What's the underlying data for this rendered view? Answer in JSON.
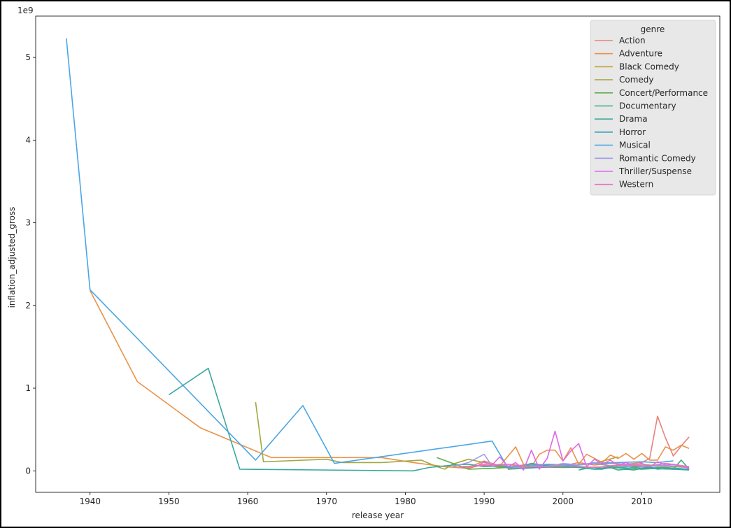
{
  "chart_data": {
    "type": "line",
    "xlabel": "release year",
    "ylabel": "inflation_adjusted_gross",
    "y_offset_label": "1e9",
    "y_scale": 1000000000,
    "xlim": [
      1933.1,
      2019.9
    ],
    "ylim": [
      -0.26,
      5.5
    ],
    "x_ticks": [
      1940,
      1950,
      1960,
      1970,
      1980,
      1990,
      2000,
      2010
    ],
    "y_ticks": [
      0,
      1,
      2,
      3,
      4,
      5
    ],
    "grid": false,
    "legend_title": "genre",
    "legend_position": "top-right",
    "series": [
      {
        "name": "Action",
        "color": "#e8827c",
        "x": [
          1985,
          1988,
          1990,
          1992,
          1994,
          1996,
          1998,
          2000,
          2002,
          2004,
          2006,
          2008,
          2010,
          2011,
          2012,
          2013,
          2014,
          2015,
          2016
        ],
        "y": [
          0.05,
          0.03,
          0.08,
          0.04,
          0.06,
          0.05,
          0.07,
          0.06,
          0.1,
          0.07,
          0.09,
          0.08,
          0.1,
          0.15,
          0.66,
          0.4,
          0.18,
          0.3,
          0.41
        ]
      },
      {
        "name": "Adventure",
        "color": "#e8934a",
        "x": [
          1940,
          1946,
          1954,
          1963,
          1977,
          1981,
          1985,
          1988,
          1990,
          1992,
          1994,
          1995,
          1996,
          1997,
          1998,
          1999,
          2000,
          2001,
          2002,
          2003,
          2004,
          2005,
          2006,
          2007,
          2008,
          2009,
          2010,
          2011,
          2012,
          2013,
          2014,
          2015,
          2016
        ],
        "y": [
          2.18,
          1.08,
          0.52,
          0.16,
          0.16,
          0.1,
          0.05,
          0.04,
          0.12,
          0.06,
          0.29,
          0.08,
          0.05,
          0.2,
          0.25,
          0.25,
          0.12,
          0.28,
          0.08,
          0.2,
          0.15,
          0.1,
          0.19,
          0.15,
          0.21,
          0.14,
          0.21,
          0.13,
          0.13,
          0.29,
          0.25,
          0.31,
          0.27
        ]
      },
      {
        "name": "Black Comedy",
        "color": "#c4a236",
        "x": [
          1992,
          1993,
          1996,
          2000,
          2004,
          2007
        ],
        "y": [
          0.08,
          0.03,
          0.04,
          0.05,
          0.09,
          0.17
        ]
      },
      {
        "name": "Comedy",
        "color": "#a2a842",
        "x": [
          1961,
          1962,
          1970,
          1972,
          1977,
          1982,
          1984,
          1985,
          1986,
          1988,
          1990,
          1992,
          1994,
          1996,
          1998,
          2000,
          2002,
          2004,
          2006,
          2008,
          2010,
          2012,
          2014,
          2016
        ],
        "y": [
          0.83,
          0.11,
          0.14,
          0.1,
          0.1,
          0.13,
          0.05,
          0.02,
          0.08,
          0.14,
          0.1,
          0.05,
          0.06,
          0.08,
          0.05,
          0.06,
          0.07,
          0.09,
          0.06,
          0.07,
          0.08,
          0.06,
          0.05,
          0.04
        ]
      },
      {
        "name": "Concert/Performance",
        "color": "#5fae4b",
        "x": [
          1984,
          1988,
          1991,
          1995,
          2000,
          2008,
          2010,
          2014
        ],
        "y": [
          0.16,
          0.02,
          0.03,
          0.05,
          0.04,
          0.05,
          0.03,
          0.02
        ]
      },
      {
        "name": "Documentary",
        "color": "#3aae7e",
        "x": [
          2002,
          2003,
          2004,
          2005,
          2006,
          2007,
          2008,
          2009,
          2010,
          2011,
          2012,
          2013,
          2014,
          2015,
          2016
        ],
        "y": [
          0.01,
          0.03,
          0.02,
          0.02,
          0.04,
          0.01,
          0.02,
          0.01,
          0.03,
          0.04,
          0.02,
          0.03,
          0.02,
          0.13,
          0.02
        ]
      },
      {
        "name": "Drama",
        "color": "#3aa89f",
        "x": [
          1950,
          1955,
          1959,
          1981,
          1983,
          1986,
          1988,
          1990,
          1992,
          1994,
          1996,
          1998,
          2000,
          2002,
          2004,
          2006,
          2008,
          2010,
          2012,
          2014,
          2016
        ],
        "y": [
          0.92,
          1.24,
          0.02,
          0.0,
          0.04,
          0.07,
          0.08,
          0.05,
          0.06,
          0.04,
          0.09,
          0.06,
          0.05,
          0.04,
          0.02,
          0.04,
          0.03,
          0.02,
          0.03,
          0.02,
          0.01
        ]
      },
      {
        "name": "Horror",
        "color": "#41a0bd",
        "x": [
          1993,
          1997,
          2001,
          2005,
          2009,
          2013,
          2016
        ],
        "y": [
          0.02,
          0.04,
          0.06,
          0.03,
          0.05,
          0.04,
          0.02
        ]
      },
      {
        "name": "Musical",
        "color": "#4aa6e6",
        "x": [
          1937,
          1940,
          1961,
          1967,
          1971,
          1991,
          1993,
          1995,
          1998,
          2001,
          2004,
          2007,
          2010,
          2012,
          2014
        ],
        "y": [
          5.23,
          2.19,
          0.13,
          0.79,
          0.09,
          0.36,
          0.04,
          0.06,
          0.08,
          0.07,
          0.09,
          0.1,
          0.11,
          0.1,
          0.12
        ]
      },
      {
        "name": "Romantic Comedy",
        "color": "#a49ae8",
        "x": [
          1986,
          1988,
          1990,
          1991,
          1992,
          1994,
          1996,
          1998,
          2000,
          2002,
          2004,
          2006,
          2008,
          2010,
          2012,
          2014,
          2016
        ],
        "y": [
          0.05,
          0.1,
          0.2,
          0.06,
          0.08,
          0.04,
          0.06,
          0.05,
          0.09,
          0.07,
          0.1,
          0.06,
          0.08,
          0.05,
          0.07,
          0.06,
          0.05
        ]
      },
      {
        "name": "Thriller/Suspense",
        "color": "#e068e8",
        "x": [
          1989,
          1990,
          1991,
          1992,
          1993,
          1994,
          1995,
          1996,
          1997,
          1998,
          1999,
          2000,
          2001,
          2002,
          2003,
          2004,
          2005,
          2006,
          2007,
          2008,
          2009,
          2010,
          2011,
          2012,
          2013,
          2014,
          2015,
          2016
        ],
        "y": [
          0.05,
          0.11,
          0.07,
          0.17,
          0.05,
          0.1,
          0.01,
          0.25,
          0.02,
          0.15,
          0.48,
          0.12,
          0.24,
          0.33,
          0.05,
          0.14,
          0.08,
          0.13,
          0.07,
          0.1,
          0.06,
          0.09,
          0.05,
          0.11,
          0.07,
          0.08,
          0.06,
          0.03
        ]
      },
      {
        "name": "Western",
        "color": "#ea6fc1",
        "x": [
          1987,
          1993,
          1996,
          2001,
          2004,
          2007,
          2011,
          2013,
          2016
        ],
        "y": [
          0.05,
          0.08,
          0.05,
          0.06,
          0.04,
          0.07,
          0.06,
          0.09,
          0.05
        ]
      }
    ]
  }
}
